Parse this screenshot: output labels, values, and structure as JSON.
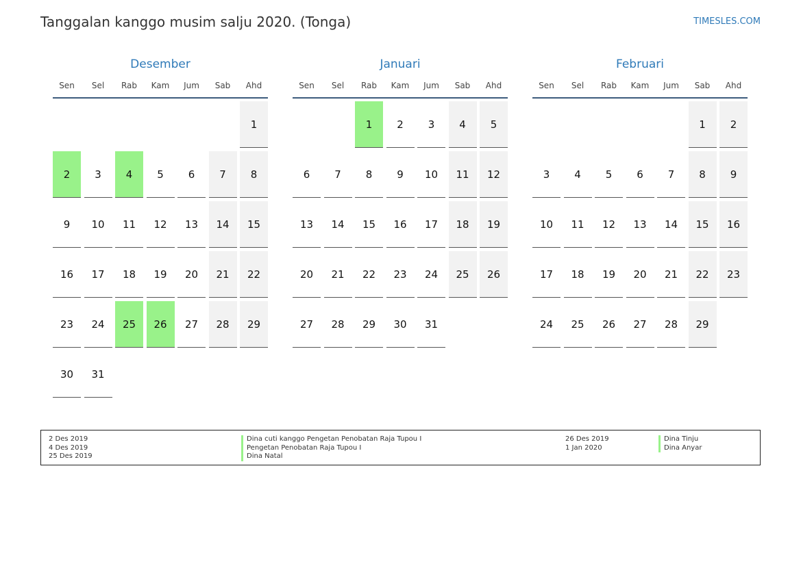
{
  "header": {
    "title": "Tanggalan kanggo musim salju 2020. (Tonga)",
    "site": "TIMESLES.COM"
  },
  "weekdays": [
    "Sen",
    "Sel",
    "Rab",
    "Kam",
    "Jum",
    "Sab",
    "Ahd"
  ],
  "months": [
    {
      "name": "Desember",
      "offset": 6,
      "days": 31,
      "holidays": [
        2,
        4,
        25,
        26
      ]
    },
    {
      "name": "Januari",
      "offset": 2,
      "days": 31,
      "holidays": [
        1
      ]
    },
    {
      "name": "Februari",
      "offset": 5,
      "days": 29,
      "holidays": []
    }
  ],
  "legend": {
    "colors": {
      "holiday": "#99f28a",
      "weekend": "#f2f2f2",
      "accent": "#2f7ab8"
    },
    "left": [
      {
        "date": "2 Des 2019",
        "name": "Dina cuti kanggo Pengetan Penobatan Raja Tupou I"
      },
      {
        "date": "4 Des 2019",
        "name": "Pengetan Penobatan Raja Tupou I"
      },
      {
        "date": "25 Des 2019",
        "name": "Dina Natal"
      }
    ],
    "right": [
      {
        "date": "26 Des 2019",
        "name": "Dina Tinju"
      },
      {
        "date": "1 Jan 2020",
        "name": "Dina Anyar"
      }
    ]
  }
}
